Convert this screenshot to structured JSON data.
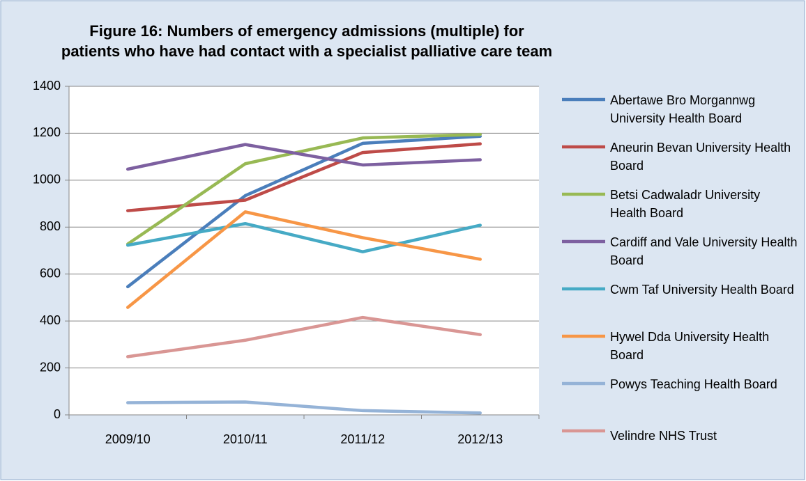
{
  "chart_data": {
    "type": "line",
    "title": [
      "Figure 16: Numbers of emergency admissions (multiple) for",
      "patients who have had contact with a specialist palliative care team"
    ],
    "categories": [
      "2009/10",
      "2010/11",
      "2011/12",
      "2012/13"
    ],
    "series": [
      {
        "name": "Abertawe Bro Morgannwg University Health Board",
        "color": "#4a7ebb",
        "values": [
          546,
          934,
          1157,
          1187
        ]
      },
      {
        "name": "Aneurin Bevan University Health Board",
        "color": "#be4b48",
        "values": [
          870,
          915,
          1118,
          1155
        ]
      },
      {
        "name": "Betsi Cadwaladr University Health Board",
        "color": "#98b954",
        "values": [
          728,
          1070,
          1180,
          1195
        ]
      },
      {
        "name": "Cardiff and Vale University Health Board",
        "color": "#7d60a0",
        "values": [
          1047,
          1152,
          1065,
          1087
        ]
      },
      {
        "name": "Cwm Taf University Health Board",
        "color": "#46aac5",
        "values": [
          723,
          815,
          695,
          808
        ]
      },
      {
        "name": "Hywel Dda University Health Board",
        "color": "#f79646",
        "values": [
          458,
          865,
          755,
          663
        ]
      },
      {
        "name": "Powys Teaching Health Board",
        "color": "#95b3d7",
        "values": [
          52,
          55,
          18,
          8
        ]
      },
      {
        "name": "Velindre NHS Trust",
        "color": "#d99694",
        "values": [
          248,
          318,
          415,
          342
        ]
      }
    ],
    "ylim": [
      0,
      1400
    ],
    "yticks": [
      0,
      200,
      400,
      600,
      800,
      1000,
      1200,
      1400
    ],
    "grid": true,
    "legend": "right"
  }
}
